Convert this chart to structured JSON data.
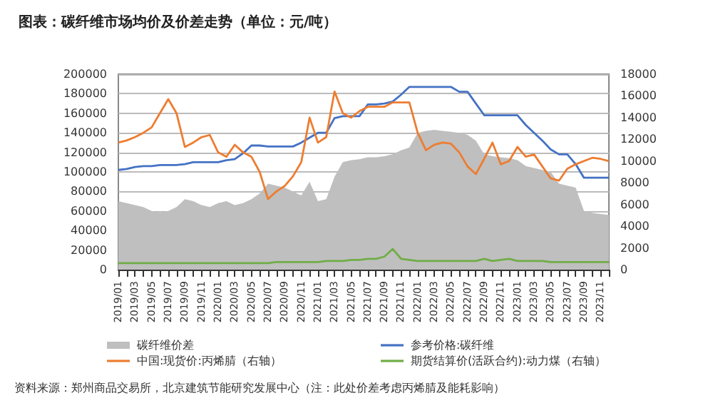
{
  "chart_data": {
    "type": "line",
    "title": "图表：碳纤维市场均价及价差走势（单位：元/吨）",
    "categories": [
      "2019/01",
      null,
      "2019/03",
      null,
      "2019/05",
      null,
      "2019/07",
      null,
      "2019/09",
      null,
      "2019/11",
      null,
      "2020/01",
      null,
      "2020/03",
      null,
      "2020/05",
      null,
      "2020/07",
      null,
      "2020/09",
      null,
      "2020/11",
      null,
      "2021/01",
      null,
      "2021/03",
      null,
      "2021/05",
      null,
      "2021/07",
      null,
      "2021/09",
      null,
      "2021/11",
      null,
      "2022/01",
      null,
      "2022/03",
      null,
      "2022/05",
      null,
      "2022/07",
      null,
      "2022/09",
      null,
      "2022/11",
      null,
      "2023/01",
      null,
      "2023/03",
      null,
      "2023/05",
      null,
      "2023/07",
      null,
      "2023/09",
      null,
      "2023/11",
      null
    ],
    "series": [
      {
        "name": "碳纤维价差",
        "type": "area",
        "color": "#bfbfbf",
        "values": [
          70000,
          68000,
          66000,
          64000,
          60000,
          58000,
          60000,
          64000,
          72000,
          70000,
          66000,
          64000,
          68000,
          70000,
          66000,
          68000,
          72000,
          78000,
          88000,
          86000,
          84000,
          80000,
          76000,
          90000,
          70000,
          72000,
          95000,
          110000,
          112000,
          113000,
          115000,
          115000,
          116000,
          118000,
          122000,
          125000,
          140000,
          142000,
          143000,
          142000,
          141000,
          140000,
          138000,
          132000,
          118000,
          116000,
          115000,
          114000,
          112000,
          106000,
          104000,
          102000,
          100000,
          88000,
          86000,
          84000,
          60000,
          58000,
          57000,
          56000
        ]
      },
      {
        "name": "参考价格:碳纤维",
        "color": "#4472c4",
        "values": [
          102000,
          103000,
          105000,
          106000,
          106000,
          107000,
          107000,
          107000,
          108000,
          110000,
          110000,
          110000,
          110000,
          112000,
          113000,
          119000,
          127000,
          127000,
          126000,
          126000,
          126000,
          126000,
          130000,
          135000,
          140000,
          140000,
          155000,
          157000,
          157000,
          157000,
          169000,
          169000,
          170000,
          172000,
          179000,
          187000,
          187000,
          187000,
          187000,
          187000,
          187000,
          182000,
          182000,
          170000,
          158000,
          158000,
          158000,
          158000,
          158000,
          148000,
          140000,
          132000,
          123000,
          118000,
          118000,
          108000,
          94000,
          94000,
          94000,
          94000
        ]
      },
      {
        "name": "中国:现货价:丙烯腈（右轴）",
        "axis": "y2",
        "color": "#ed7d31",
        "values": [
          11700,
          11900,
          12200,
          12600,
          13100,
          14400,
          15700,
          14400,
          11300,
          11700,
          12200,
          12400,
          10800,
          10400,
          11500,
          10800,
          10400,
          9000,
          6500,
          7200,
          7700,
          8600,
          9900,
          14000,
          11700,
          12200,
          16400,
          14400,
          14000,
          14600,
          15000,
          15000,
          15000,
          15400,
          15400,
          15400,
          12600,
          11000,
          11500,
          11700,
          11600,
          10800,
          9500,
          8800,
          10200,
          11700,
          9700,
          10000,
          11300,
          10400,
          10600,
          9500,
          8400,
          8200,
          9300,
          9700,
          10000,
          10300,
          10200,
          10000
        ]
      },
      {
        "name": "期货结算价(活跃合约):动力煤（右轴）",
        "axis": "y2",
        "color": "#70ad47",
        "values": [
          600,
          600,
          600,
          600,
          600,
          600,
          600,
          600,
          600,
          600,
          600,
          600,
          600,
          600,
          600,
          600,
          600,
          600,
          600,
          700,
          700,
          700,
          700,
          700,
          700,
          800,
          800,
          800,
          900,
          900,
          1000,
          1000,
          1200,
          1900,
          1000,
          900,
          800,
          800,
          800,
          800,
          800,
          800,
          800,
          800,
          1000,
          800,
          900,
          1000,
          800,
          800,
          800,
          800,
          700,
          700,
          700,
          700,
          700,
          700,
          700,
          700
        ]
      }
    ],
    "ylim": [
      0,
      200000
    ],
    "yticks": [
      0,
      20000,
      40000,
      60000,
      80000,
      100000,
      120000,
      140000,
      160000,
      180000,
      200000
    ],
    "y2lim": [
      0,
      18000
    ],
    "y2ticks": [
      0,
      2000,
      4000,
      6000,
      8000,
      10000,
      12000,
      14000,
      16000,
      18000
    ],
    "grid": "y",
    "legend": "bottom",
    "marker": "none",
    "line_style": "solid",
    "annotations": [
      "资料来源：郑州商品交易所，北京建筑节能研究发展中心（注：此处价差考虑丙烯腈及能耗影响）"
    ]
  }
}
